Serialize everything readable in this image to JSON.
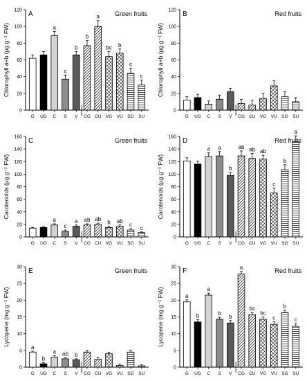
{
  "chart_data": [
    {
      "type": "bar",
      "panel_letter": "A",
      "title": "Green fruits",
      "ylabel": "Chlorophyll a+b (µg g⁻¹ FW)",
      "ylim": [
        0,
        120
      ],
      "yticks": [
        0,
        20,
        40,
        60,
        80,
        100,
        120
      ],
      "categories": [
        "G",
        "UG",
        "C",
        "S",
        "V",
        "CG",
        "CU",
        "VG",
        "VU",
        "SG",
        "SU"
      ],
      "values": [
        62,
        66,
        89,
        37,
        66,
        77,
        100,
        64,
        68,
        44,
        30
      ],
      "errors": [
        4,
        4,
        5,
        5,
        4,
        6,
        7,
        6,
        5,
        6,
        6
      ],
      "letters": [
        "",
        "",
        "a",
        "c",
        "b",
        "b",
        "a",
        "bc",
        "b",
        "c",
        "c"
      ]
    },
    {
      "type": "bar",
      "panel_letter": "B",
      "title": "Red fruits",
      "ylabel": "Chlorophyll a+b (µg g⁻¹ FW)",
      "ylim": [
        0,
        120
      ],
      "yticks": [
        0,
        20,
        40,
        60,
        80,
        100,
        120
      ],
      "categories": [
        "G",
        "UG",
        "C",
        "S",
        "V",
        "CG",
        "CU",
        "VG",
        "VU",
        "SG",
        "SU"
      ],
      "values": [
        12,
        15,
        7,
        13,
        22,
        8,
        6,
        14,
        29,
        16,
        10
      ],
      "errors": [
        4,
        4,
        4,
        5,
        4,
        5,
        6,
        6,
        6,
        6,
        5
      ],
      "letters": [
        "",
        "",
        "",
        "",
        "",
        "",
        "",
        "",
        "",
        "",
        ""
      ]
    },
    {
      "type": "bar",
      "panel_letter": "C",
      "title": "Green fruits",
      "ylabel": "Carotenoids (µg g⁻¹ FW)",
      "ylim": [
        0,
        160
      ],
      "yticks": [
        0,
        20,
        40,
        60,
        80,
        100,
        120,
        140,
        160
      ],
      "categories": [
        "G",
        "UG",
        "C",
        "S",
        "V",
        "CG",
        "CU",
        "VG",
        "VU",
        "SG",
        "SU"
      ],
      "values": [
        14,
        15,
        19,
        9,
        17,
        19,
        20,
        15,
        17,
        11,
        7
      ],
      "errors": [
        1,
        1,
        2,
        2,
        2,
        2,
        2,
        2,
        2,
        2,
        1
      ],
      "letters": [
        "",
        "",
        "a",
        "c",
        "a",
        "ab",
        "ab",
        "b",
        "ab",
        "c",
        "c"
      ]
    },
    {
      "type": "bar",
      "panel_letter": "D",
      "title": "Red fruits",
      "ylabel": "Carotenoids (µg g⁻¹ FW)",
      "ylim": [
        0,
        160
      ],
      "yticks": [
        0,
        20,
        40,
        60,
        80,
        100,
        120,
        140,
        160
      ],
      "categories": [
        "G",
        "UG",
        "C",
        "S",
        "V",
        "CG",
        "CU",
        "VG",
        "VU",
        "SG",
        "SU"
      ],
      "values": [
        121,
        116,
        128,
        129,
        98,
        129,
        125,
        124,
        70,
        107,
        152
      ],
      "errors": [
        5,
        5,
        6,
        7,
        5,
        8,
        8,
        6,
        8,
        8,
        9
      ],
      "letters": [
        "",
        "",
        "a",
        "a",
        "b",
        "ab",
        "ab",
        "ab",
        "c",
        "b",
        "a"
      ]
    },
    {
      "type": "bar",
      "panel_letter": "E",
      "title": "Green fruits",
      "ylabel": "Lycopene (mg g⁻¹ FW)",
      "ylim": [
        0,
        30
      ],
      "yticks": [
        0,
        5,
        10,
        15,
        20,
        25,
        30
      ],
      "categories": [
        "G",
        "UG",
        "C",
        "S",
        "V",
        "CG",
        "CU",
        "VG",
        "VU",
        "SG",
        "SU"
      ],
      "values": [
        4.5,
        1.0,
        3.0,
        2.5,
        2.2,
        4.5,
        2.4,
        4.0,
        0.5,
        4.5,
        0.4
      ],
      "errors": [
        0.3,
        0.3,
        0.4,
        0.3,
        0.3,
        0.5,
        0.4,
        0.4,
        0.4,
        0.5,
        0.3
      ],
      "letters": [
        "a",
        "b",
        "a",
        "ab",
        "b",
        "",
        "",
        "",
        "",
        "",
        ""
      ]
    },
    {
      "type": "bar",
      "panel_letter": "F",
      "title": "Red fruits",
      "ylabel": "Lycopene (mg g⁻¹ FW)",
      "ylim": [
        0,
        30
      ],
      "yticks": [
        0,
        5,
        10,
        15,
        20,
        25,
        30
      ],
      "categories": [
        "G",
        "UG",
        "C",
        "S",
        "V",
        "CG",
        "CU",
        "VG",
        "VU",
        "SG",
        "SU"
      ],
      "values": [
        19.5,
        13.5,
        21.5,
        14.3,
        13.2,
        27.8,
        15.7,
        14.3,
        12.8,
        16.3,
        12.2
      ],
      "errors": [
        0.6,
        0.7,
        0.6,
        0.6,
        0.7,
        0.8,
        0.6,
        0.7,
        0.8,
        0.7,
        0.8
      ],
      "letters": [
        "a",
        "b",
        "a",
        "b",
        "b",
        "a",
        "bc",
        "bc",
        "c",
        "b",
        "c"
      ]
    }
  ],
  "bar_styles": [
    "white",
    "black",
    "lightgray",
    "gray",
    "darkgray",
    "diag",
    "diag",
    "cross",
    "cross",
    "horiz",
    "horiz"
  ]
}
